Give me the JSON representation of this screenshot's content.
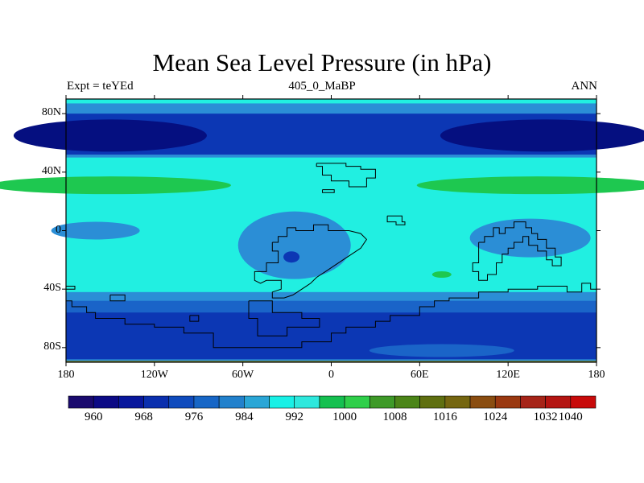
{
  "title": "Mean Sea Level Pressure (in hPa)",
  "subtitle_left": "Expt = teYEd",
  "subtitle_center": "405_0_MaBP",
  "subtitle_right": "ANN",
  "lat_ticks": [
    {
      "label": "80N",
      "lat": 80
    },
    {
      "label": "40N",
      "lat": 40
    },
    {
      "label": "0",
      "lat": 0
    },
    {
      "label": "40S",
      "lat": -40
    },
    {
      "label": "80S",
      "lat": -80
    }
  ],
  "lon_ticks": [
    {
      "label": "180",
      "lon": -180
    },
    {
      "label": "120W",
      "lon": -120
    },
    {
      "label": "60W",
      "lon": -60
    },
    {
      "label": "0",
      "lon": 0
    },
    {
      "label": "60E",
      "lon": 60
    },
    {
      "label": "120E",
      "lon": 120
    },
    {
      "label": "180",
      "lon": 180
    }
  ],
  "colorbar": {
    "colors": [
      "#1a0a6e",
      "#0c0a85",
      "#08179c",
      "#0a2fae",
      "#0f4bbd",
      "#1766c6",
      "#2281cc",
      "#2aa6d6",
      "#19f0e6",
      "#2ee8dd",
      "#15c050",
      "#2fcf4a",
      "#3e9a28",
      "#4b8518",
      "#5f6f10",
      "#756610",
      "#8a4d10",
      "#9a3810",
      "#a62418",
      "#b41512",
      "#c80a0a"
    ],
    "labels": [
      {
        "text": "960",
        "index": 1
      },
      {
        "text": "968",
        "index": 3
      },
      {
        "text": "976",
        "index": 5
      },
      {
        "text": "984",
        "index": 7
      },
      {
        "text": "992",
        "index": 9
      },
      {
        "text": "1000",
        "index": 11
      },
      {
        "text": "1008",
        "index": 13
      },
      {
        "text": "1016",
        "index": 15
      },
      {
        "text": "1024",
        "index": 17
      },
      {
        "text": "1032",
        "index": 19
      },
      {
        "text": "1040",
        "index": 20
      }
    ]
  },
  "field_colors": {
    "deep_low": "#050f80",
    "low": "#0c37b4",
    "mid_low": "#1a64c8",
    "mid": "#2b8ed6",
    "high": "#21efe1",
    "subtropical_high": "#1ec850",
    "polar_edge": "#6f7a2a",
    "coastline": "#000000"
  }
}
